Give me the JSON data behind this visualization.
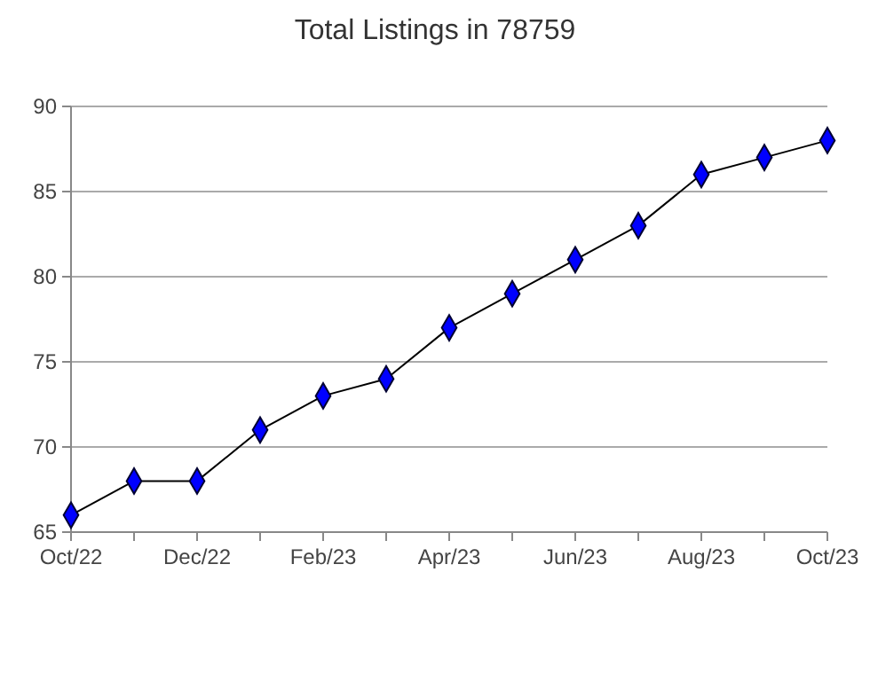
{
  "chart_data": {
    "type": "line",
    "title": "Total Listings in 78759",
    "categories": [
      "Oct/22",
      null,
      "Dec/22",
      null,
      "Feb/23",
      null,
      "Apr/23",
      null,
      "Jun/23",
      null,
      "Aug/23",
      null,
      "Oct/23"
    ],
    "series": [
      {
        "color": "#0000ff",
        "values": [
          66,
          68,
          68,
          71,
          73,
          74,
          77,
          79,
          81,
          83,
          86,
          87,
          88
        ]
      }
    ],
    "ylim": [
      65,
      90
    ],
    "yticks": [
      65,
      70,
      75,
      80,
      85,
      90
    ],
    "grid": "y",
    "marker": "diamond",
    "line_style": "solid"
  }
}
